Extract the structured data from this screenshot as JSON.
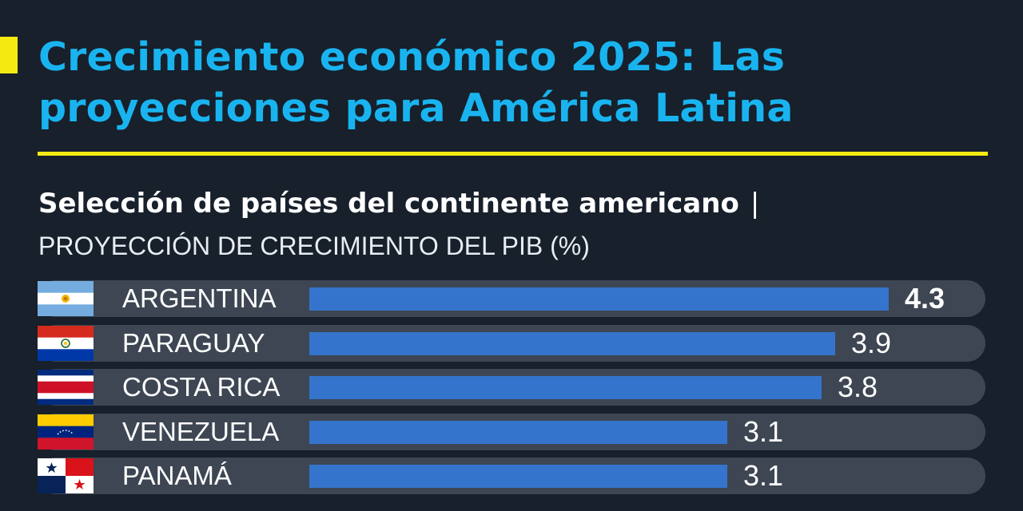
{
  "header": {
    "title": "Crecimiento económico 2025: Las proyecciones para América Latina",
    "subtitle": "Selección de países del continente americano",
    "subtitle_separator": "|",
    "unit_label": "PROYECCIÓN DE CRECIMIENTO DEL PIB (%)"
  },
  "colors": {
    "background": "#17202b",
    "title": "#19b4f0",
    "accent": "#f4ea12",
    "bar": "#3474cc",
    "track": "#3d4652"
  },
  "chart_data": {
    "type": "bar",
    "orientation": "horizontal",
    "title": "Crecimiento económico 2025: Las proyecciones para América Latina",
    "subtitle": "Selección de países del continente americano",
    "ylabel": "PROYECCIÓN DE CRECIMIENTO DEL PIB (%)",
    "xlim": [
      0,
      4.3
    ],
    "grid": false,
    "categories": [
      "ARGENTINA",
      "PARAGUAY",
      "COSTA RICA",
      "VENEZUELA",
      "PANAMÁ"
    ],
    "values": [
      4.3,
      3.9,
      3.8,
      3.1,
      3.1
    ],
    "value_labels": [
      "4.3",
      "3.9",
      "3.8",
      "3.1",
      "3.1"
    ],
    "flag_icons": [
      "argentina-flag-icon",
      "paraguay-flag-icon",
      "costa-rica-flag-icon",
      "venezuela-flag-icon",
      "panama-flag-icon"
    ]
  }
}
